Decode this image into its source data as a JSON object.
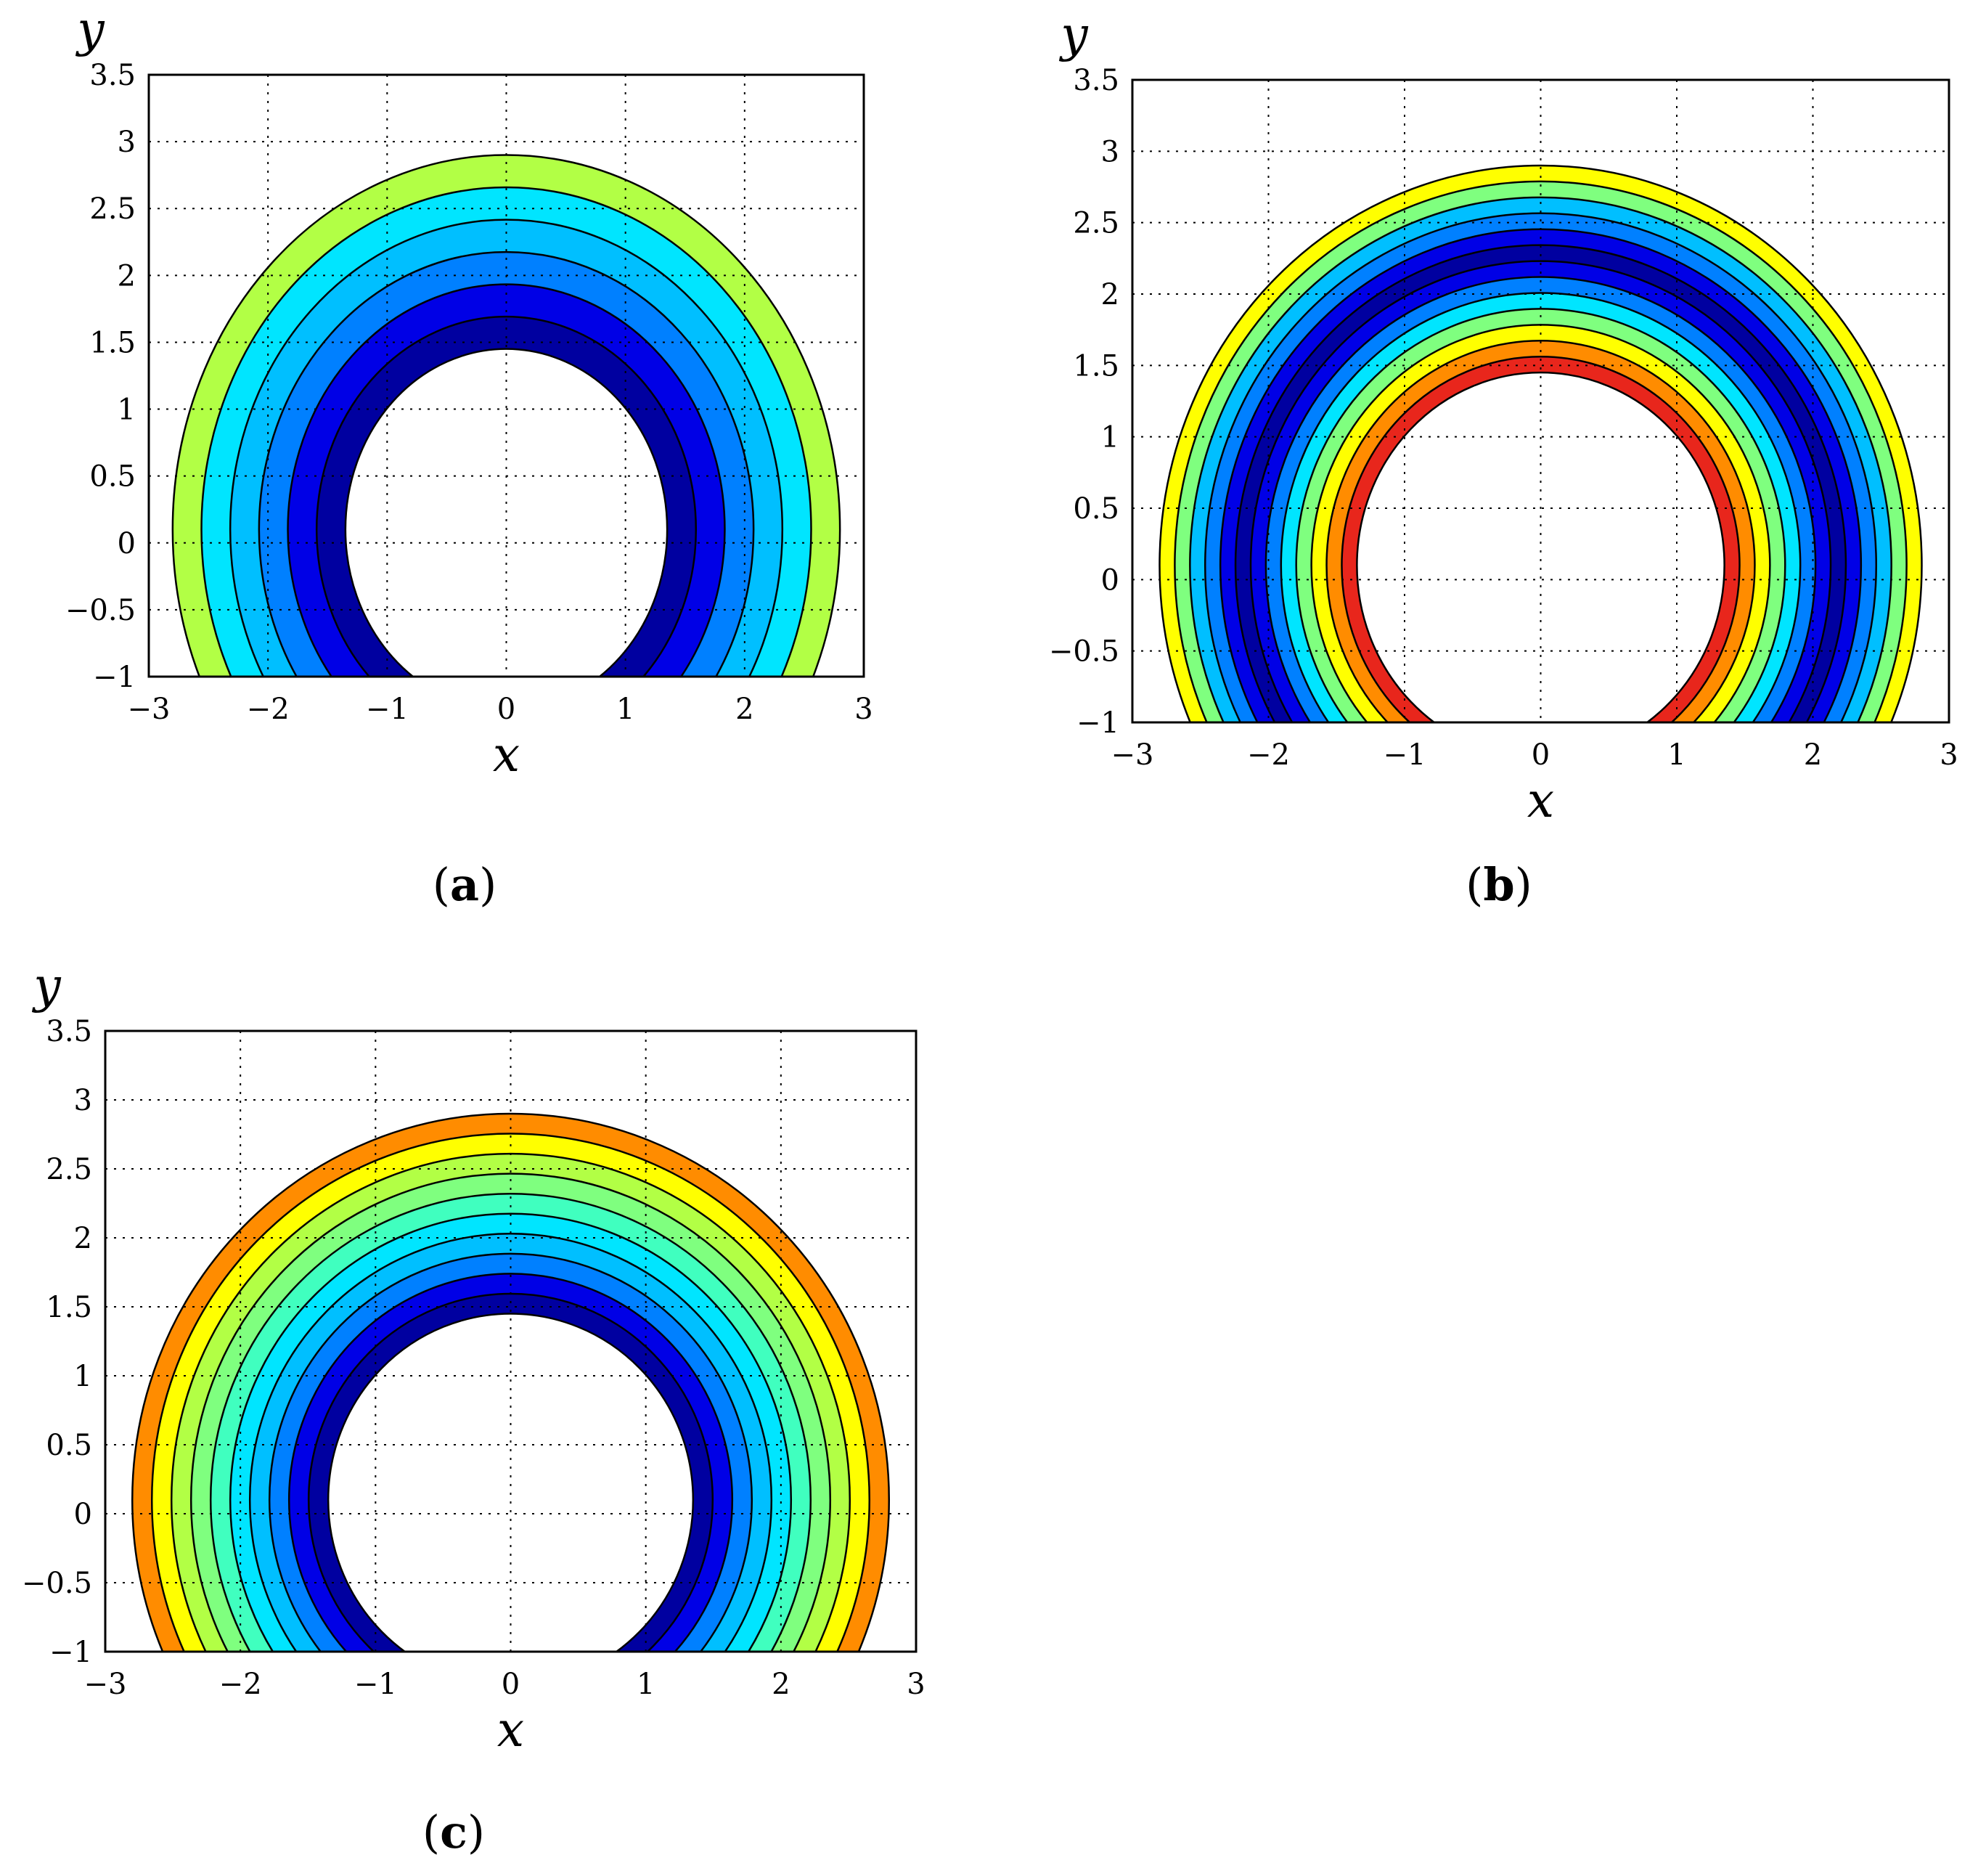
{
  "colors": {
    "red": "#e8261c",
    "orange": "#ff8c00",
    "yellow": "#ffff00",
    "yellow-green": "#b2ff45",
    "green": "#7fff7f",
    "sea-green": "#40ffbf",
    "cyan": "#00e5ff",
    "light-blue": "#00bfff",
    "azure": "#0080ff",
    "blue": "#0000e6",
    "navy": "#0000a0"
  },
  "chart_data": [
    {
      "type": "contour",
      "caption_letter": "a",
      "xlabel": "x",
      "ylabel": "y",
      "xlim": [
        -3,
        3
      ],
      "ylim": [
        -1,
        3.5
      ],
      "xticks": [
        "−3",
        "−2",
        "−1",
        "0",
        "1",
        "2",
        "3"
      ],
      "yticks": [
        "−1",
        "−0.5",
        "0",
        "0.5",
        "1",
        "1.5",
        "2",
        "2.5",
        "3",
        "3.5"
      ],
      "grid": true,
      "domain": {
        "outer_radius": 2.8,
        "inner_radius": 1.35,
        "center": [
          0,
          0.1
        ],
        "bottom": -1
      },
      "bands_outer_to_inner": [
        "yellow-green",
        "cyan",
        "light-blue",
        "azure",
        "blue",
        "navy"
      ]
    },
    {
      "type": "contour",
      "caption_letter": "b",
      "xlabel": "x",
      "ylabel": "y",
      "xlim": [
        -3,
        3
      ],
      "ylim": [
        -1,
        3.5
      ],
      "xticks": [
        "−3",
        "−2",
        "−1",
        "0",
        "1",
        "2",
        "3"
      ],
      "yticks": [
        "−1",
        "−0.5",
        "0",
        "0.5",
        "1",
        "1.5",
        "2",
        "2.5",
        "3",
        "3.5"
      ],
      "grid": true,
      "domain": {
        "outer_radius": 2.8,
        "inner_radius": 1.35,
        "center": [
          0,
          0.1
        ],
        "bottom": -1
      },
      "bands_outer_to_inner": [
        "yellow",
        "green",
        "light-blue",
        "azure",
        "blue",
        "navy",
        "blue",
        "azure",
        "cyan",
        "green",
        "yellow",
        "orange",
        "red"
      ]
    },
    {
      "type": "contour",
      "caption_letter": "c",
      "xlabel": "x",
      "ylabel": "y",
      "xlim": [
        -3,
        3
      ],
      "ylim": [
        -1,
        3.5
      ],
      "xticks": [
        "−3",
        "−2",
        "−1",
        "0",
        "1",
        "2",
        "3"
      ],
      "yticks": [
        "−1",
        "−0.5",
        "0",
        "0.5",
        "1",
        "1.5",
        "2",
        "2.5",
        "3",
        "3.5"
      ],
      "grid": true,
      "domain": {
        "outer_radius": 2.8,
        "inner_radius": 1.35,
        "center": [
          0,
          0.1
        ],
        "bottom": -1
      },
      "bands_outer_to_inner": [
        "orange",
        "yellow",
        "yellow-green",
        "green",
        "sea-green",
        "cyan",
        "light-blue",
        "azure",
        "blue",
        "navy"
      ]
    }
  ]
}
